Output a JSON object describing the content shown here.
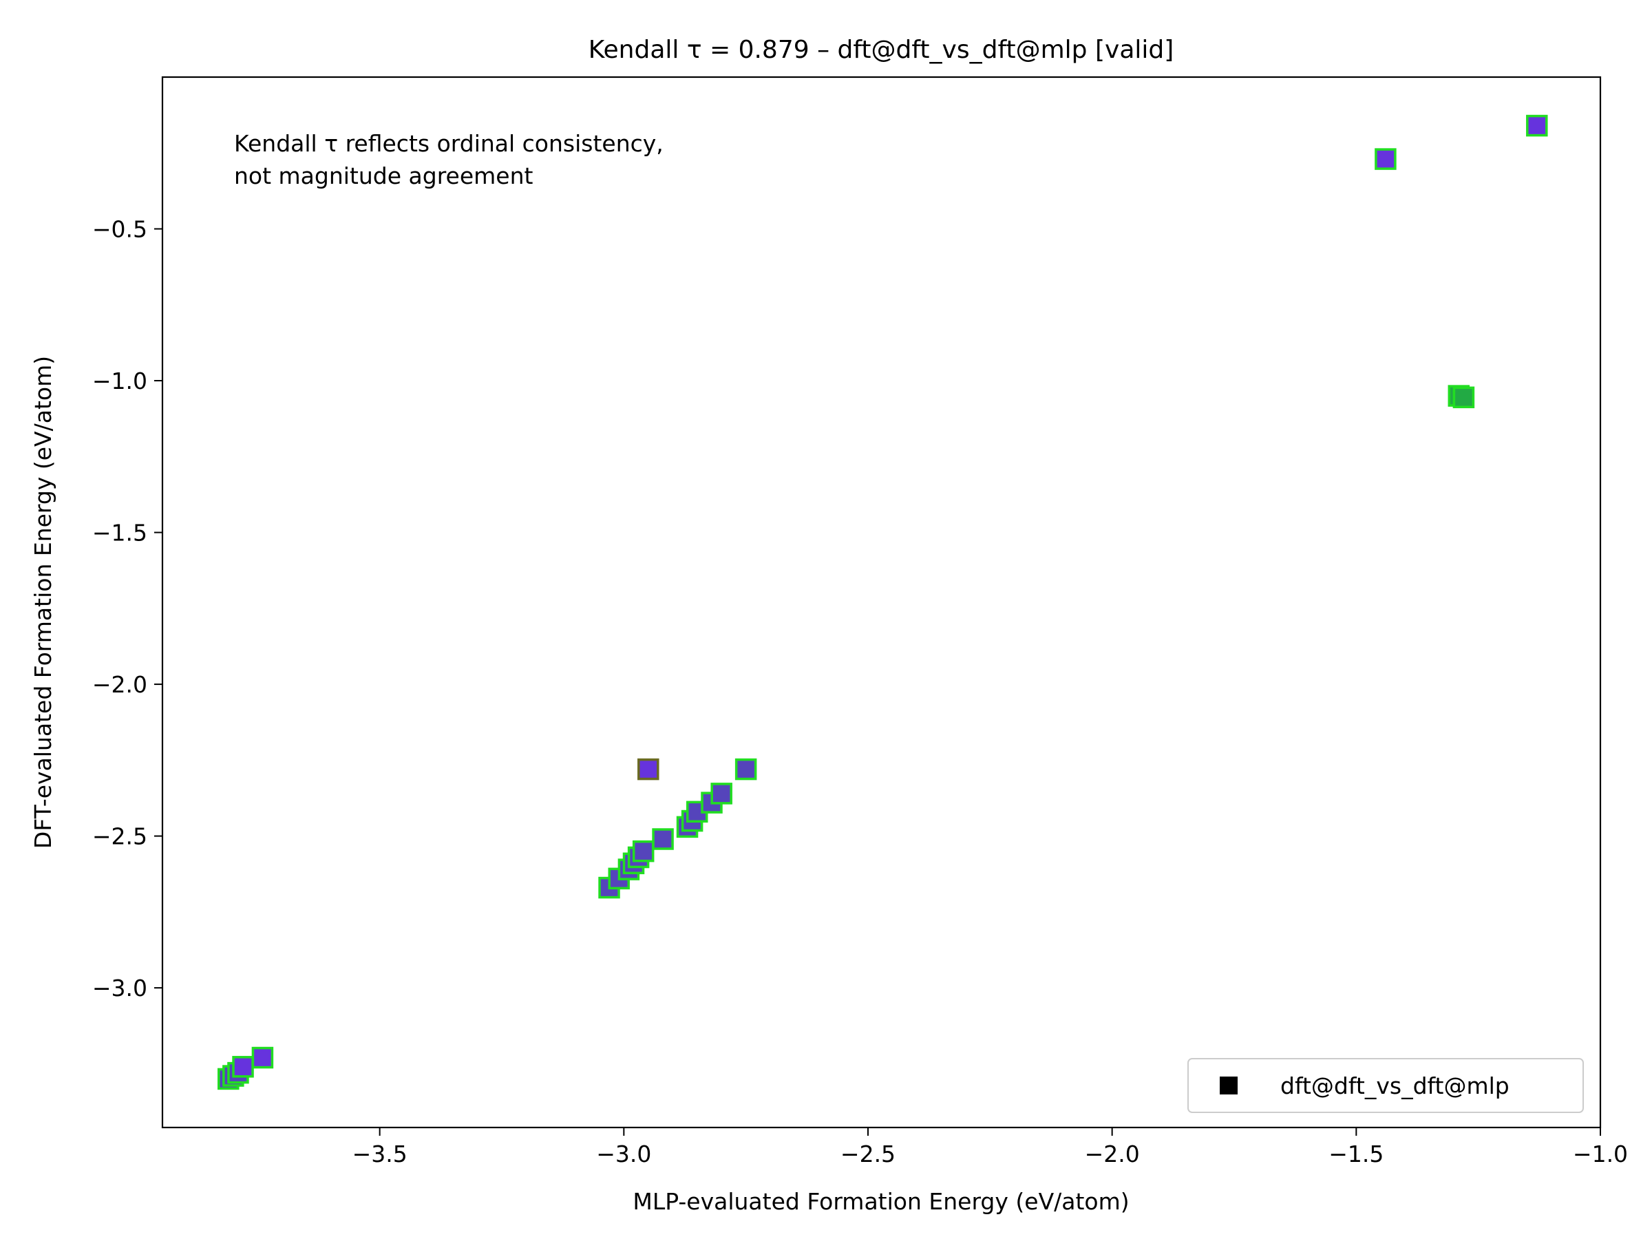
{
  "chart_data": {
    "type": "scatter",
    "title": "Kendall τ = 0.879 – dft@dft_vs_dft@mlp [valid]",
    "xlabel": "MLP-evaluated Formation Energy (eV/atom)",
    "ylabel": "DFT-evaluated Formation Energy (eV/atom)",
    "xlim": [
      -3.945,
      -1.0
    ],
    "ylim": [
      -3.46,
      0.0
    ],
    "x_ticks": [
      -3.5,
      -3.0,
      -2.5,
      -2.0,
      -1.5,
      -1.0
    ],
    "x_tick_labels": [
      "−3.5",
      "−3.0",
      "−2.5",
      "−2.0",
      "−1.5",
      "−1.0"
    ],
    "y_ticks": [
      -0.5,
      -1.0,
      -1.5,
      -2.0,
      -2.5,
      -3.0
    ],
    "y_tick_labels": [
      "−0.5",
      "−1.0",
      "−1.5",
      "−2.0",
      "−2.5",
      "−3.0"
    ],
    "grid": false,
    "annotation": [
      "Kendall τ reflects ordinal consistency,",
      "not magnitude agreement"
    ],
    "legend": {
      "position": "lower-right",
      "entries": [
        "dft@dft_vs_dft@mlp"
      ]
    },
    "marker": "square",
    "colors": {
      "edge": "#22dd22",
      "fill_main": "#6633dd",
      "fill_blend": "#5544bb",
      "fill_green": "#22aa44",
      "edge_outlier": "#6a6a22"
    },
    "series": [
      {
        "name": "dft@dft_vs_dft@mlp",
        "points": [
          {
            "x": -3.81,
            "y": -3.3,
            "fill": "#5544bb"
          },
          {
            "x": -3.8,
            "y": -3.29,
            "fill": "#5544bb"
          },
          {
            "x": -3.79,
            "y": -3.28,
            "fill": "#5544bb"
          },
          {
            "x": -3.78,
            "y": -3.26,
            "fill": "#6633dd"
          },
          {
            "x": -3.74,
            "y": -3.23,
            "fill": "#6633dd"
          },
          {
            "x": -3.03,
            "y": -2.67,
            "fill": "#5544bb"
          },
          {
            "x": -3.01,
            "y": -2.64,
            "fill": "#5544bb"
          },
          {
            "x": -2.99,
            "y": -2.61,
            "fill": "#5544bb"
          },
          {
            "x": -2.98,
            "y": -2.59,
            "fill": "#5544bb"
          },
          {
            "x": -2.97,
            "y": -2.57,
            "fill": "#5544bb"
          },
          {
            "x": -2.96,
            "y": -2.55,
            "fill": "#5544bb"
          },
          {
            "x": -2.92,
            "y": -2.51,
            "fill": "#5544bb"
          },
          {
            "x": -2.87,
            "y": -2.47,
            "fill": "#5544bb"
          },
          {
            "x": -2.86,
            "y": -2.45,
            "fill": "#5544bb"
          },
          {
            "x": -2.85,
            "y": -2.42,
            "fill": "#5544bb"
          },
          {
            "x": -2.82,
            "y": -2.39,
            "fill": "#5544bb"
          },
          {
            "x": -2.8,
            "y": -2.36,
            "fill": "#5544bb"
          },
          {
            "x": -2.75,
            "y": -2.28,
            "fill": "#5544bb"
          },
          {
            "x": -2.95,
            "y": -2.28,
            "fill": "#6633dd",
            "edge": "#6a6a22"
          },
          {
            "x": -1.44,
            "y": -0.27,
            "fill": "#6633dd"
          },
          {
            "x": -1.13,
            "y": -0.16,
            "fill": "#6633dd"
          },
          {
            "x": -1.29,
            "y": -1.05,
            "fill": "#22aa44"
          },
          {
            "x": -1.28,
            "y": -1.055,
            "fill": "#22aa44"
          }
        ]
      }
    ]
  }
}
